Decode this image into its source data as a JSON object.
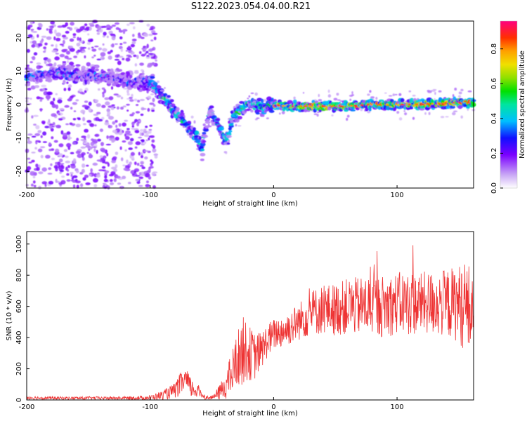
{
  "title": "S122.2023.054.04.00.R21",
  "chart_data": [
    {
      "type": "heatmap",
      "xlabel": "Height of straight line (km)",
      "ylabel": "Frequency (Hz)",
      "xlim": [
        -200,
        162
      ],
      "ylim": [
        -25,
        25
      ],
      "xticks": [
        -200,
        -100,
        0,
        100
      ],
      "yticks": [
        -20,
        -10,
        0,
        10,
        20
      ],
      "grid": false,
      "colorbar": {
        "label": "Normalized spectral amplitude",
        "range": [
          0.0,
          0.96
        ],
        "ticks": [
          "0.0",
          "0.2",
          "0.4",
          "0.6",
          "0.8"
        ]
      },
      "ridge": {
        "x": [
          -200,
          -190,
          -175,
          -160,
          -145,
          -130,
          -115,
          -100,
          -92,
          -85,
          -78,
          -70,
          -62,
          -58,
          -52,
          -45,
          -38,
          -33,
          -28,
          -22,
          -15,
          -8,
          0,
          10,
          20,
          40,
          60,
          80,
          100,
          120,
          140,
          162
        ],
        "frequency": [
          8,
          9,
          9.5,
          9,
          8.5,
          8,
          7,
          7,
          3,
          0,
          -3,
          -6,
          -10,
          -13,
          -2,
          -6,
          -11,
          -4,
          -2,
          0,
          0,
          -1,
          0,
          -0.5,
          -0.5,
          -0.5,
          -0.5,
          0,
          0,
          0,
          0.5,
          0.5
        ]
      }
    },
    {
      "type": "line",
      "xlabel": "Height of straight line (km)",
      "ylabel": "SNR (10 * v/v)",
      "xlim": [
        -200,
        162
      ],
      "ylim": [
        0,
        1080
      ],
      "xticks": [
        -200,
        -100,
        0,
        100
      ],
      "yticks": [
        0,
        200,
        400,
        600,
        800,
        1000
      ],
      "grid": false,
      "color": "#ee3333",
      "envelope": {
        "x": [
          -200,
          -180,
          -160,
          -140,
          -120,
          -100,
          -90,
          -80,
          -72,
          -66,
          -60,
          -55,
          -50,
          -45,
          -40,
          -35,
          -30,
          -25,
          -20,
          -15,
          -10,
          -5,
          0,
          10,
          20,
          30,
          40,
          50,
          60,
          70,
          80,
          90,
          100,
          110,
          120,
          130,
          140,
          150,
          155,
          162
        ],
        "mean_snr": [
          15,
          12,
          12,
          12,
          12,
          15,
          30,
          60,
          130,
          70,
          50,
          15,
          15,
          40,
          80,
          150,
          250,
          320,
          300,
          280,
          320,
          380,
          420,
          450,
          500,
          560,
          580,
          580,
          600,
          600,
          610,
          600,
          620,
          620,
          620,
          620,
          620,
          620,
          600,
          560
        ],
        "noise": [
          12,
          10,
          10,
          10,
          10,
          15,
          30,
          50,
          90,
          60,
          40,
          12,
          12,
          40,
          80,
          130,
          180,
          220,
          180,
          150,
          120,
          110,
          100,
          110,
          120,
          150,
          160,
          170,
          180,
          190,
          200,
          200,
          200,
          210,
          200,
          210,
          220,
          250,
          300,
          300
        ]
      }
    }
  ]
}
